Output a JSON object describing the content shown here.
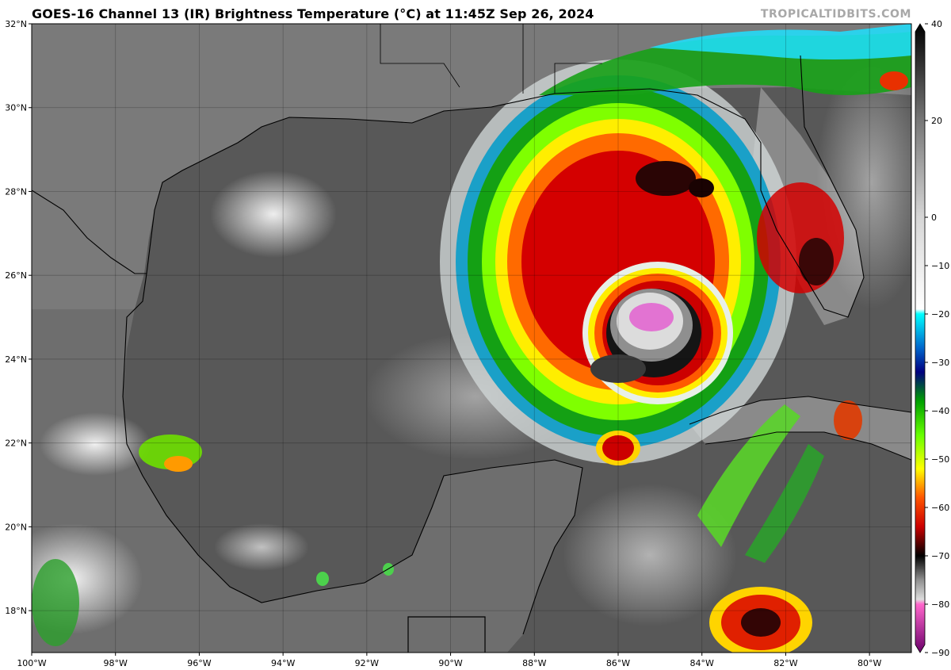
{
  "header": {
    "title": "GOES-16 Channel 13 (IR) Brightness Temperature (°C) at 11:45Z Sep 26, 2024",
    "credit": "TROPICALTIDBITS.COM"
  },
  "map": {
    "lon_range": [
      -100,
      -79
    ],
    "lat_range": [
      17,
      32
    ],
    "lon_ticks": [
      {
        "v": -100,
        "label": "100°W"
      },
      {
        "v": -98,
        "label": "98°W"
      },
      {
        "v": -96,
        "label": "96°W"
      },
      {
        "v": -94,
        "label": "94°W"
      },
      {
        "v": -92,
        "label": "92°W"
      },
      {
        "v": -90,
        "label": "90°W"
      },
      {
        "v": -88,
        "label": "88°W"
      },
      {
        "v": -86,
        "label": "86°W"
      },
      {
        "v": -84,
        "label": "84°W"
      },
      {
        "v": -82,
        "label": "82°W"
      },
      {
        "v": -80,
        "label": "80°W"
      }
    ],
    "lat_ticks": [
      {
        "v": 32,
        "label": "32°N"
      },
      {
        "v": 30,
        "label": "30°N"
      },
      {
        "v": 28,
        "label": "28°N"
      },
      {
        "v": 26,
        "label": "26°N"
      },
      {
        "v": 24,
        "label": "24°N"
      },
      {
        "v": 22,
        "label": "22°N"
      },
      {
        "v": 20,
        "label": "20°N"
      },
      {
        "v": 18,
        "label": "18°N"
      }
    ]
  },
  "colorbar": {
    "range": [
      -90,
      40
    ],
    "ticks": [
      {
        "v": 40,
        "label": "40"
      },
      {
        "v": 20,
        "label": "20"
      },
      {
        "v": 0,
        "label": "0"
      },
      {
        "v": -10,
        "label": "−10"
      },
      {
        "v": -20,
        "label": "−20"
      },
      {
        "v": -30,
        "label": "−30"
      },
      {
        "v": -40,
        "label": "−40"
      },
      {
        "v": -50,
        "label": "−50"
      },
      {
        "v": -60,
        "label": "−60"
      },
      {
        "v": -70,
        "label": "−70"
      },
      {
        "v": -80,
        "label": "−80"
      },
      {
        "v": -90,
        "label": "−90"
      }
    ],
    "stops": [
      {
        "v": 40,
        "color": "#000000"
      },
      {
        "v": 20,
        "color": "#777777"
      },
      {
        "v": 0,
        "color": "#d6d6d6"
      },
      {
        "v": -19,
        "color": "#ffffff"
      },
      {
        "v": -20,
        "color": "#00ffff"
      },
      {
        "v": -27,
        "color": "#0066cc"
      },
      {
        "v": -32,
        "color": "#000080"
      },
      {
        "v": -38,
        "color": "#00a000"
      },
      {
        "v": -45,
        "color": "#66ff00"
      },
      {
        "v": -52,
        "color": "#ffff00"
      },
      {
        "v": -58,
        "color": "#ff5500"
      },
      {
        "v": -64,
        "color": "#cc0000"
      },
      {
        "v": -70,
        "color": "#000000"
      },
      {
        "v": -75,
        "color": "#909090"
      },
      {
        "v": -79,
        "color": "#dddddd"
      },
      {
        "v": -80,
        "color": "#ff66cc"
      },
      {
        "v": -90,
        "color": "#6a006a"
      }
    ]
  },
  "storm": {
    "center": {
      "lon": -85.0,
      "lat": 24.6
    }
  }
}
